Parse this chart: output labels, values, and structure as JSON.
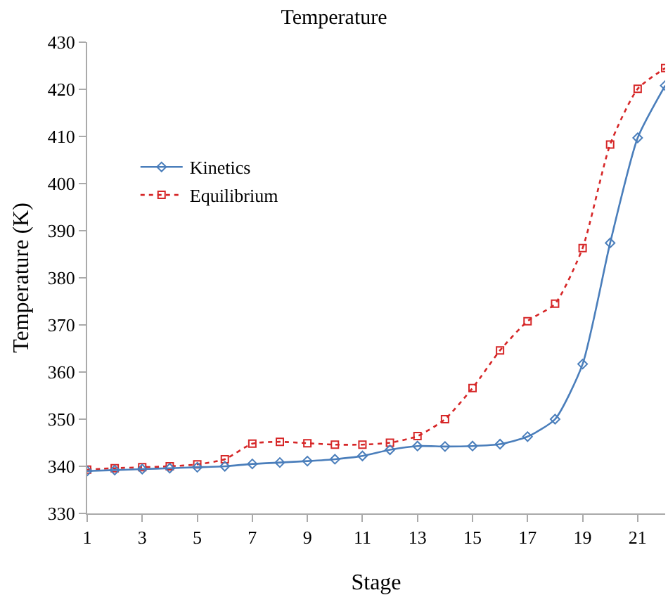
{
  "chart_data": {
    "type": "line",
    "title": "Temperature",
    "xlabel": "Stage",
    "ylabel": "Temperature (K)",
    "x": [
      1,
      2,
      3,
      4,
      5,
      6,
      7,
      8,
      9,
      10,
      11,
      12,
      13,
      14,
      15,
      16,
      17,
      18,
      19,
      20,
      21,
      22
    ],
    "series": [
      {
        "name": "Kinetics",
        "color": "#4a7ebb",
        "marker": "diamond",
        "line_style": "solid",
        "values": [
          339,
          339.2,
          339.4,
          339.6,
          339.8,
          340,
          340.5,
          340.8,
          341.1,
          341.5,
          342.2,
          343.5,
          344.3,
          344.2,
          344.3,
          344.7,
          346.3,
          350,
          361.7,
          387.4,
          409.7,
          420.8
        ]
      },
      {
        "name": "Equilibrium",
        "color": "#d62728",
        "marker": "square",
        "line_style": "dotted",
        "values": [
          339.3,
          339.6,
          339.8,
          340,
          340.4,
          341.5,
          344.8,
          345.2,
          344.9,
          344.6,
          344.6,
          345,
          346.4,
          350,
          356.6,
          364.6,
          370.8,
          374.5,
          386.3,
          408.3,
          420.1,
          424.5
        ]
      }
    ],
    "xlim": [
      1,
      22
    ],
    "xticks": [
      1,
      3,
      5,
      7,
      9,
      11,
      13,
      15,
      17,
      19,
      21
    ],
    "ylim": [
      330,
      430
    ],
    "yticks": [
      330,
      340,
      350,
      360,
      370,
      380,
      390,
      400,
      410,
      420,
      430
    ],
    "grid": false,
    "legend": "top left"
  }
}
